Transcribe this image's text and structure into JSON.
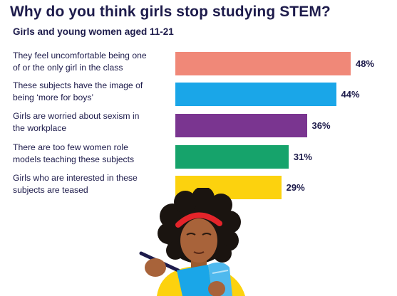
{
  "title": "Why do you think girls stop studying STEM?",
  "subtitle": "Girls and young women aged 11-21",
  "chart_data": {
    "type": "bar",
    "orientation": "horizontal",
    "title": "Why do you think girls stop studying STEM?",
    "subtitle": "Girls and young women aged 11-21",
    "xlim": [
      0,
      50
    ],
    "grid": false,
    "categories": [
      "They feel uncomfortable being one\nof or the only girl in the class",
      "These subjects have the image of\nbeing ‘more for boys’",
      "Girls are worried about sexism in\nthe workplace",
      "There are too few women role\nmodels teaching these subjects",
      "Girls who are interested in these\nsubjects are teased"
    ],
    "values": [
      48,
      44,
      36,
      31,
      29
    ],
    "value_labels": [
      "48%",
      "44%",
      "36%",
      "31%",
      "29%"
    ],
    "colors": [
      "#f08878",
      "#1aa6e8",
      "#7a3590",
      "#16a36b",
      "#fcd20e"
    ]
  }
}
